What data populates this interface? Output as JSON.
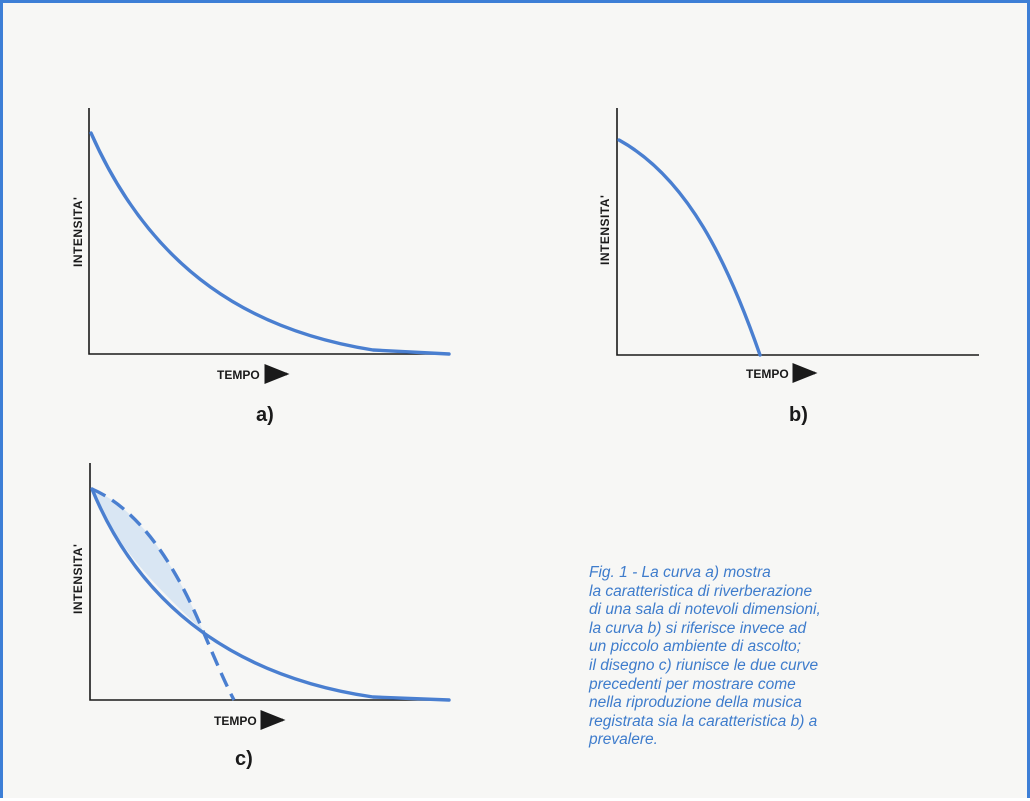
{
  "panels": [
    {
      "id": "a",
      "label": "a)",
      "ylabel": "INTENSITA'",
      "xlabel": "TEMPO"
    },
    {
      "id": "b",
      "label": "b)",
      "ylabel": "INTENSITA'",
      "xlabel": "TEMPO"
    },
    {
      "id": "c",
      "label": "c)",
      "ylabel": "INTENSITA'",
      "xlabel": "TEMPO"
    }
  ],
  "caption": [
    "Fig. 1 - La curva a) mostra",
    "la caratteristica di riverberazione",
    "di una sala di notevoli dimensioni,",
    "la curva b) si riferisce invece ad",
    "un piccolo ambiente di ascolto;",
    "il disegno c) riunisce le due curve",
    "precedenti per mostrare come",
    "nella riproduzione della musica",
    "registrata sia la caratteristica b) a",
    "prevalere."
  ],
  "colors": {
    "curve": "#4a7fd0",
    "caption": "#3e7ccc",
    "border": "#3d7fd6",
    "fill": "#d9e6f3"
  }
}
